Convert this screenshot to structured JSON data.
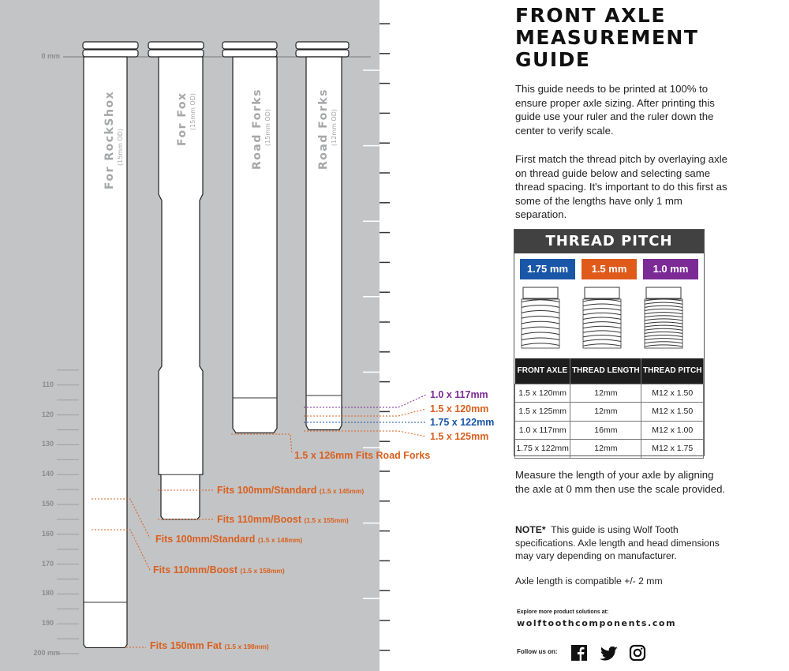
{
  "title": [
    "FRONT AXLE",
    "MEASUREMENT",
    "GUIDE"
  ],
  "intro": "This guide needs to be printed at 100% to ensure proper axle sizing. After printing this guide use your ruler and the ruler down the center to verify scale.",
  "thread_intro": "First match the thread pitch by overlaying axle on thread guide below and selecting same thread spacing. It's important to do this first as some of the lengths have only 1 mm separation.",
  "thread_pitch": {
    "title": "THREAD PITCH",
    "pills": [
      {
        "label": "1.75 mm",
        "color": "#1a56a8"
      },
      {
        "label": "1.5 mm",
        "color": "#e05a1a"
      },
      {
        "label": "1.0 mm",
        "color": "#7b2a96"
      }
    ],
    "headers": [
      "FRONT AXLE",
      "THREAD LENGTH",
      "THREAD PITCH"
    ],
    "rows": [
      [
        "1.5 x 120mm",
        "12mm",
        "M12 x 1.50"
      ],
      [
        "1.5 x 125mm",
        "12mm",
        "M12 x 1.50"
      ],
      [
        "1.0 x 117mm",
        "16mm",
        "M12 x 1.00"
      ],
      [
        "1.75 x 122mm",
        "12mm",
        "M12 x 1.75"
      ]
    ]
  },
  "measure": "Measure the length of your axle by aligning the axle at 0 mm then use the scale provided.",
  "note_label": "NOTE*",
  "note": "This guide is using Wolf Tooth specifications. Axle length and head dimensions may vary depending on manufacturer.",
  "compat": "Axle length is compatible +/- 2 mm",
  "explore": "Explore more product solutions at:",
  "website": "wolftoothcomponents.com",
  "follow": "Follow us on:",
  "social_icons": [
    "facebook-icon",
    "twitter-icon",
    "instagram-icon"
  ],
  "scale": {
    "zero": "0 mm",
    "labels": [
      "110",
      "120",
      "130",
      "140",
      "150",
      "160",
      "170",
      "180",
      "190",
      "200 mm"
    ]
  },
  "axles": [
    {
      "name": "For RockShox",
      "sub": "(15mm OD)"
    },
    {
      "name": "For Fox",
      "sub": "(15mm OD)"
    },
    {
      "name": "Road Forks",
      "sub": "(15mm OD)"
    },
    {
      "name": "Road Forks",
      "sub": "(12mm OD)"
    }
  ],
  "callouts": {
    "c117": "1.0 x 117mm",
    "c120": "1.5 x 120mm",
    "c122": "1.75 x 122mm",
    "c125": "1.5 x 125mm",
    "c126": "1.5 x 126mm Fits Road Forks",
    "fox100": "Fits 100mm/Standard",
    "fox100s": "(1.5 x 145mm)",
    "fox110": "Fits 110mm/Boost",
    "fox110s": "(1.5 x 155mm)",
    "rs100": "Fits 100mm/Standard",
    "rs100s": "(1.5 x 148mm)",
    "rs110": "Fits 110mm/Boost",
    "rs110s": "(1.5 x 158mm)",
    "fat": "Fits 150mm Fat",
    "fats": "(1.5 x 198mm)"
  },
  "colors": {
    "orange": "#d9601f",
    "blue": "#1a56a8",
    "purple": "#7b2a96",
    "panel": "#c3c4c6"
  }
}
